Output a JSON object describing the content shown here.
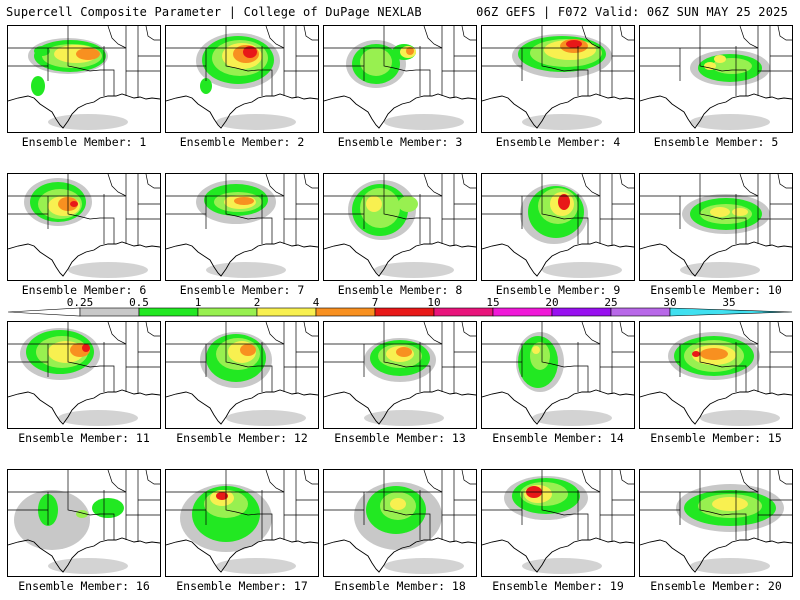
{
  "header": {
    "left_title": "Supercell Composite Parameter | College of DuPage NEXLAB",
    "right_title": "06Z GEFS | F072 Valid: 06Z SUN MAY 25 2025"
  },
  "colorbar": {
    "levels": [
      "0.25",
      "0.5",
      "1",
      "2",
      "4",
      "7",
      "10",
      "15",
      "20",
      "25",
      "30",
      "35"
    ],
    "colors": [
      "#c8c8c8",
      "#22e822",
      "#98f050",
      "#f8f050",
      "#f89020",
      "#e81818",
      "#e8147c",
      "#f018d8",
      "#9810f0",
      "#b868e8",
      "#40e0f0"
    ]
  },
  "members": [
    {
      "caption": "Ensemble Member: 1"
    },
    {
      "caption": "Ensemble Member: 2"
    },
    {
      "caption": "Ensemble Member: 3"
    },
    {
      "caption": "Ensemble Member: 4"
    },
    {
      "caption": "Ensemble Member: 5"
    },
    {
      "caption": "Ensemble Member: 6"
    },
    {
      "caption": "Ensemble Member: 7"
    },
    {
      "caption": "Ensemble Member: 8"
    },
    {
      "caption": "Ensemble Member: 9"
    },
    {
      "caption": "Ensemble Member: 10"
    },
    {
      "caption": "Ensemble Member: 11"
    },
    {
      "caption": "Ensemble Member: 12"
    },
    {
      "caption": "Ensemble Member: 13"
    },
    {
      "caption": "Ensemble Member: 14"
    },
    {
      "caption": "Ensemble Member: 15"
    },
    {
      "caption": "Ensemble Member: 16"
    },
    {
      "caption": "Ensemble Member: 17"
    },
    {
      "caption": "Ensemble Member: 18"
    },
    {
      "caption": "Ensemble Member: 19"
    },
    {
      "caption": "Ensemble Member: 20"
    }
  ]
}
